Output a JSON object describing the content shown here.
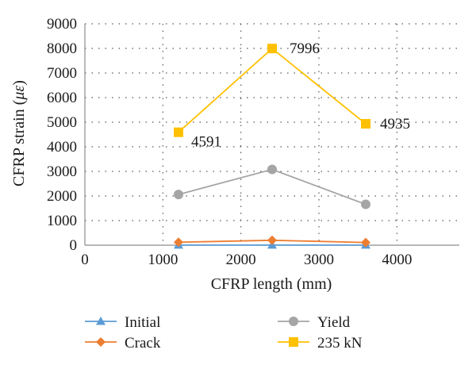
{
  "chart_data": {
    "type": "line",
    "xlabel": "CFRP length (mm)",
    "ylabel_prefix": "CFRP strain (",
    "ylabel_unit": "με",
    "ylabel_suffix": ")",
    "xlim": [
      0,
      4800
    ],
    "ylim": [
      0,
      9000
    ],
    "x_ticks": [
      0,
      1000,
      2000,
      3000,
      4000
    ],
    "y_ticks": [
      0,
      1000,
      2000,
      3000,
      4000,
      5000,
      6000,
      7000,
      8000,
      9000
    ],
    "grid": "dotted",
    "legend_position": "bottom",
    "series": [
      {
        "name": "Initial",
        "color": "#5b9bd5",
        "marker": "triangle",
        "x": [
          1200,
          2400,
          3600
        ],
        "y": [
          5,
          5,
          5
        ]
      },
      {
        "name": "Crack",
        "color": "#ed7d31",
        "marker": "diamond",
        "x": [
          1200,
          2400,
          3600
        ],
        "y": [
          120,
          200,
          110
        ]
      },
      {
        "name": "Yield",
        "color": "#a5a5a5",
        "marker": "circle",
        "x": [
          1200,
          2400,
          3600
        ],
        "y": [
          2060,
          3080,
          1660
        ]
      },
      {
        "name": "235 kN",
        "color": "#ffc000",
        "marker": "square",
        "x": [
          1200,
          2400,
          3600
        ],
        "y": [
          4591,
          7996,
          4935
        ],
        "labels": [
          "4591",
          "7996",
          "4935"
        ]
      }
    ]
  }
}
